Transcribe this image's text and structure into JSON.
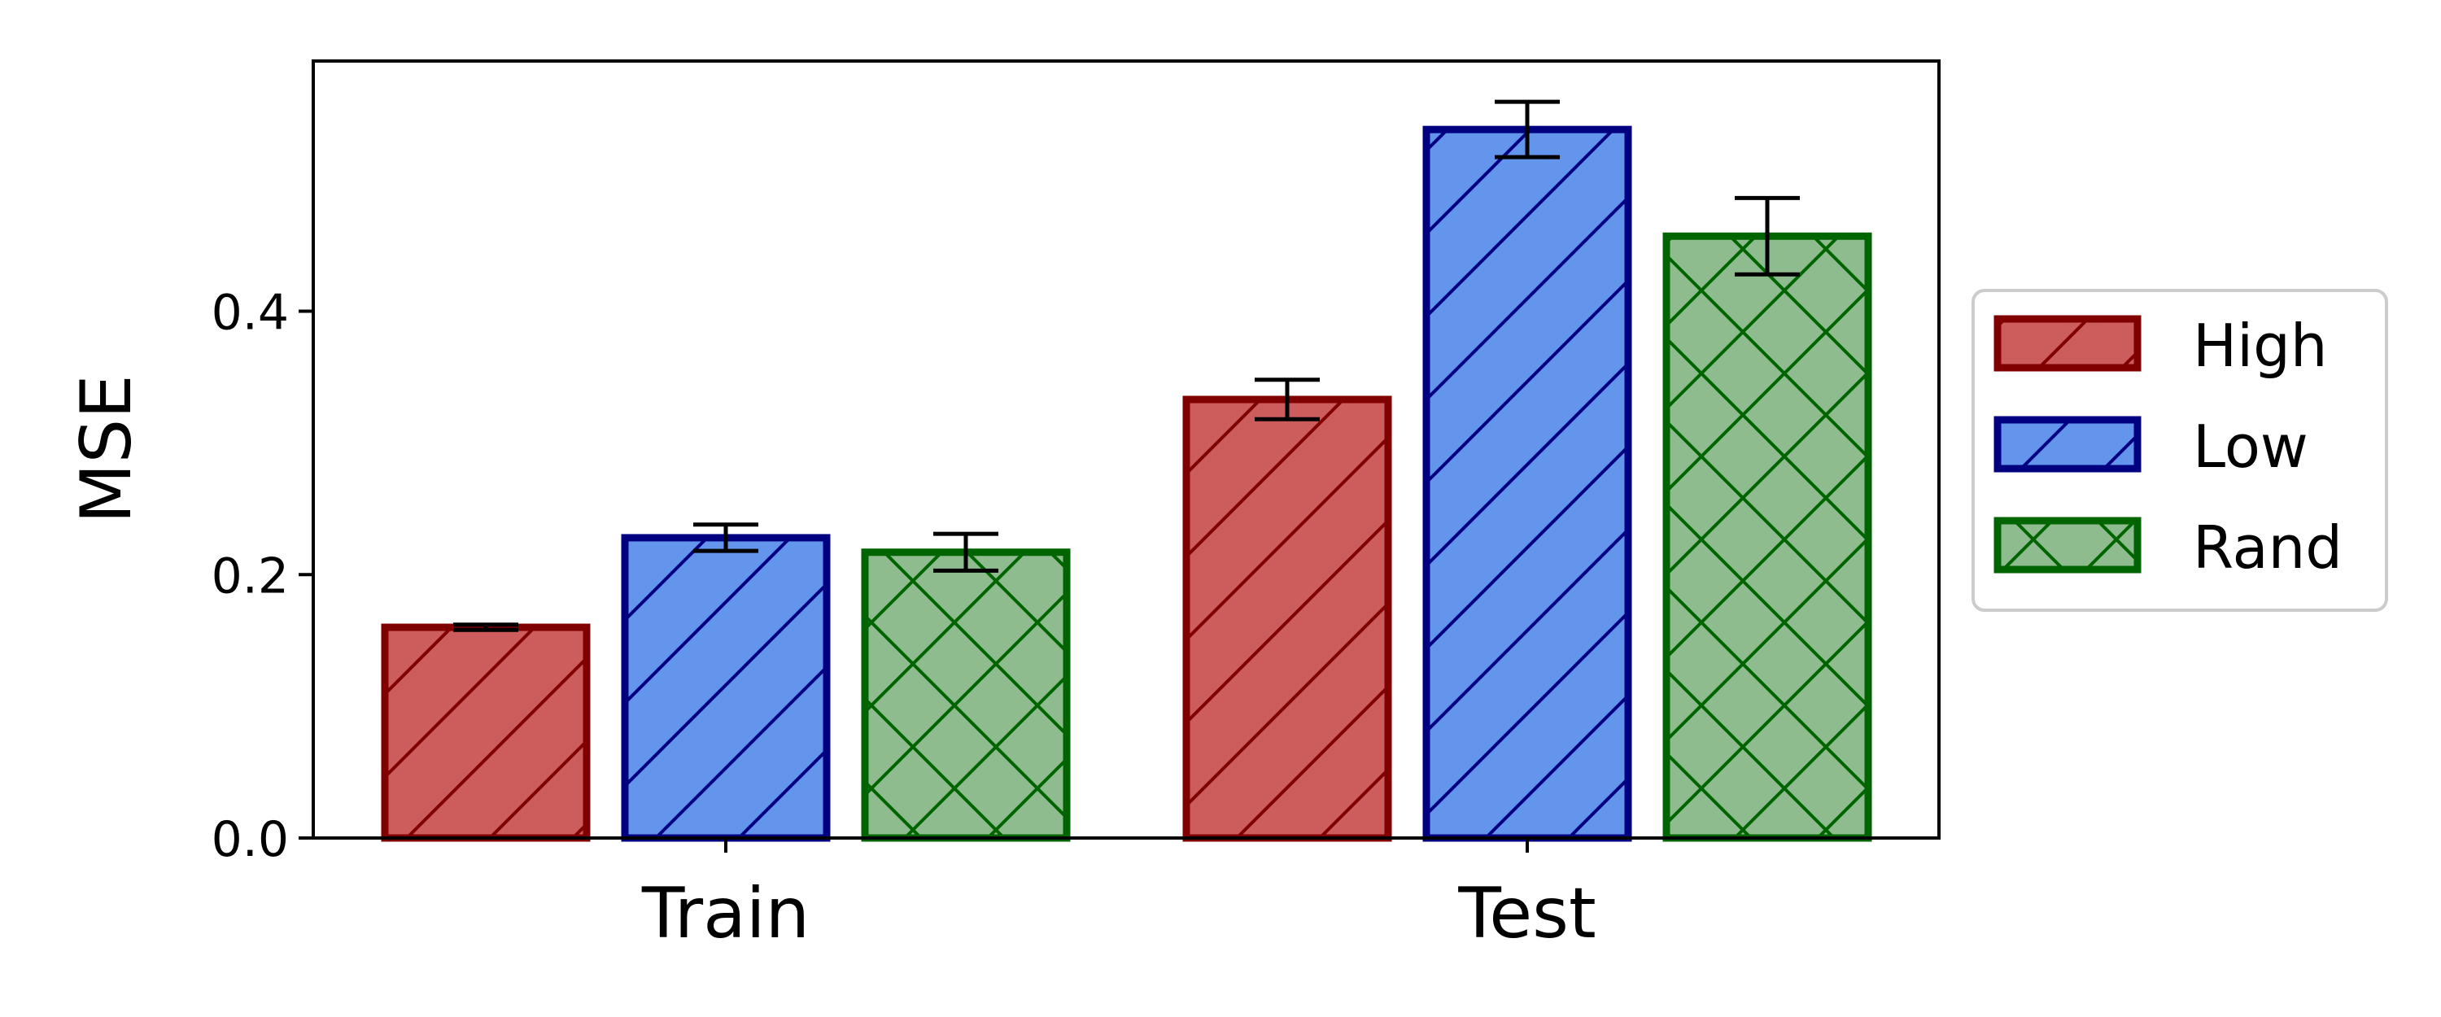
{
  "chart_data": {
    "type": "bar",
    "title": "",
    "xlabel": "",
    "ylabel": "MSE",
    "categories": [
      "Train",
      "Test"
    ],
    "ylim": [
      0,
      0.59
    ],
    "yticks": [
      0.0,
      0.2,
      0.4
    ],
    "ytick_labels": [
      "0.0",
      "0.2",
      "0.4"
    ],
    "grid": false,
    "legend_placement": "right",
    "series": [
      {
        "name": "High",
        "values": [
          0.16,
          0.333
        ],
        "errors": [
          0.002,
          0.015
        ],
        "fill": "#cd5c5c",
        "edge": "#800000",
        "hatch": "diagonal"
      },
      {
        "name": "Low",
        "values": [
          0.228,
          0.538
        ],
        "errors": [
          0.01,
          0.021
        ],
        "fill": "#6495ed",
        "edge": "#000080",
        "hatch": "diagonal"
      },
      {
        "name": "Rand",
        "values": [
          0.217,
          0.457
        ],
        "errors": [
          0.014,
          0.029
        ],
        "fill": "#8fbc8f",
        "edge": "#006400",
        "hatch": "crosshatch"
      }
    ]
  }
}
